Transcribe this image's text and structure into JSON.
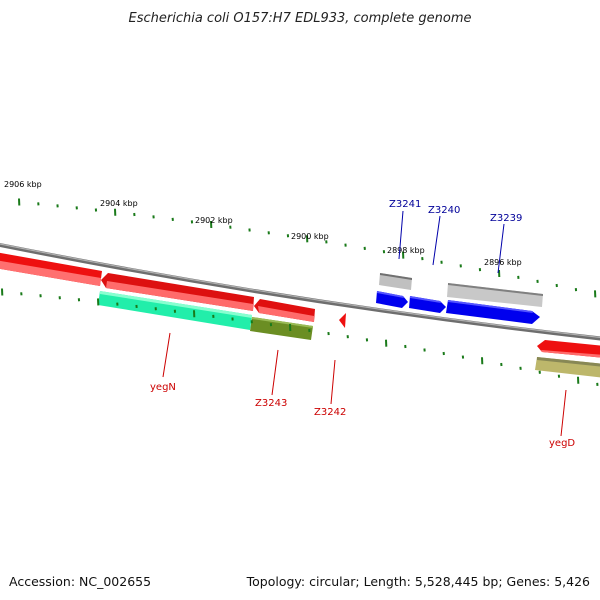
{
  "title": "Escherichia coli O157:H7 EDL933, complete genome",
  "footer": {
    "accession": "Accession: NC_002655",
    "summary": "Topology: circular; Length: 5,528,445 bp; Genes: 5,426"
  },
  "colors": {
    "backbone": "#808080",
    "tick": "#1a7a1a",
    "red_gene": "#ee0000",
    "blue_gene": "#0000ee",
    "gray_gene": "#b4b4b4",
    "green_gene": "#22eeaa",
    "olive_gene": "#6b8e23",
    "khaki_gene": "#bdb76b",
    "red_label": "#cc0000",
    "blue_label": "#000099"
  },
  "kbp_labels": [
    "2906 kbp",
    "2904 kbp",
    "2902 kbp",
    "2900 kbp",
    "2898 kbp",
    "2896 kbp"
  ],
  "gene_labels": {
    "Z3241": "Z3241",
    "Z3240": "Z3240",
    "Z3239": "Z3239",
    "yegN": "yegN",
    "Z3243": "Z3243",
    "Z3242": "Z3242",
    "yegD": "yegD"
  }
}
